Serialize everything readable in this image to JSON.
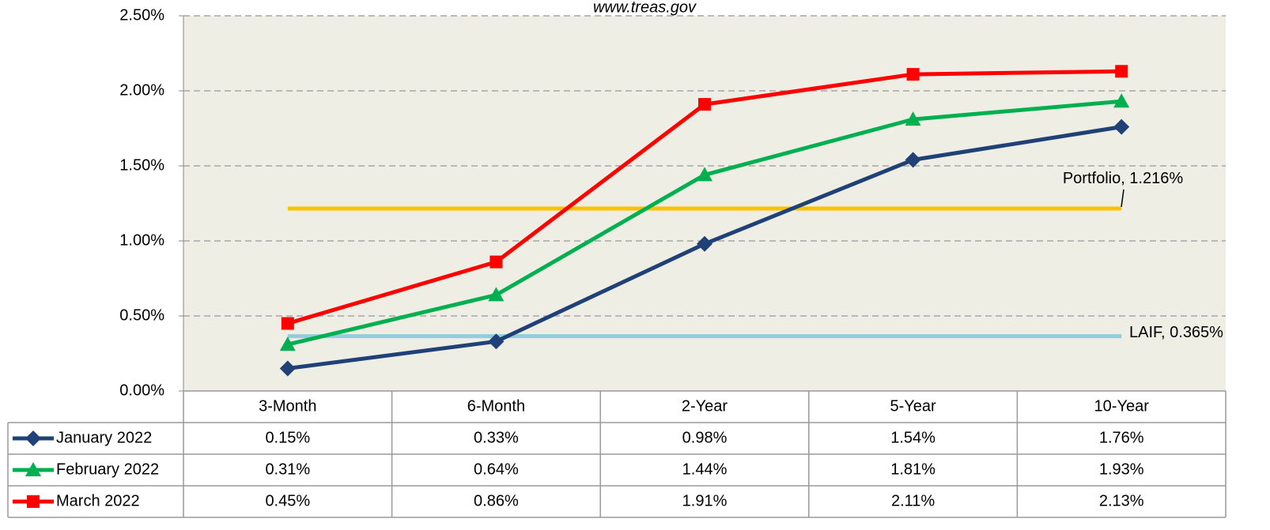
{
  "chart_data": {
    "type": "line",
    "subtitle": "www.treas.gov",
    "categories": [
      "3-Month",
      "6-Month",
      "2-Year",
      "5-Year",
      "10-Year"
    ],
    "series": [
      {
        "name": "January 2022",
        "color": "#1f4178",
        "marker": "diamond",
        "values": [
          0.15,
          0.33,
          0.98,
          1.54,
          1.76
        ],
        "value_labels": [
          "0.15%",
          "0.33%",
          "0.98%",
          "1.54%",
          "1.76%"
        ]
      },
      {
        "name": "February 2022",
        "color": "#00b050",
        "marker": "triangle",
        "values": [
          0.31,
          0.64,
          1.44,
          1.81,
          1.93
        ],
        "value_labels": [
          "0.31%",
          "0.64%",
          "1.44%",
          "1.81%",
          "1.93%"
        ]
      },
      {
        "name": "March 2022",
        "color": "#ff0000",
        "marker": "square",
        "values": [
          0.45,
          0.86,
          1.91,
          2.11,
          2.13
        ],
        "value_labels": [
          "0.45%",
          "0.86%",
          "1.91%",
          "2.11%",
          "2.13%"
        ]
      }
    ],
    "reference_lines": [
      {
        "value": 1.216,
        "label": "Portfolio, 1.216%",
        "color": "#ffc000"
      },
      {
        "value": 0.365,
        "label": "LAIF, 0.365%",
        "color": "#92cddc"
      }
    ],
    "ylim": [
      0,
      2.5
    ],
    "yticks": [
      {
        "value": 0,
        "label": "0.00%"
      },
      {
        "value": 0.5,
        "label": "0.50%"
      },
      {
        "value": 1,
        "label": "1.00%"
      },
      {
        "value": 1.5,
        "label": "1.50%"
      },
      {
        "value": 2,
        "label": "2.00%"
      },
      {
        "value": 2.5,
        "label": "2.50%"
      }
    ],
    "grid": true
  }
}
